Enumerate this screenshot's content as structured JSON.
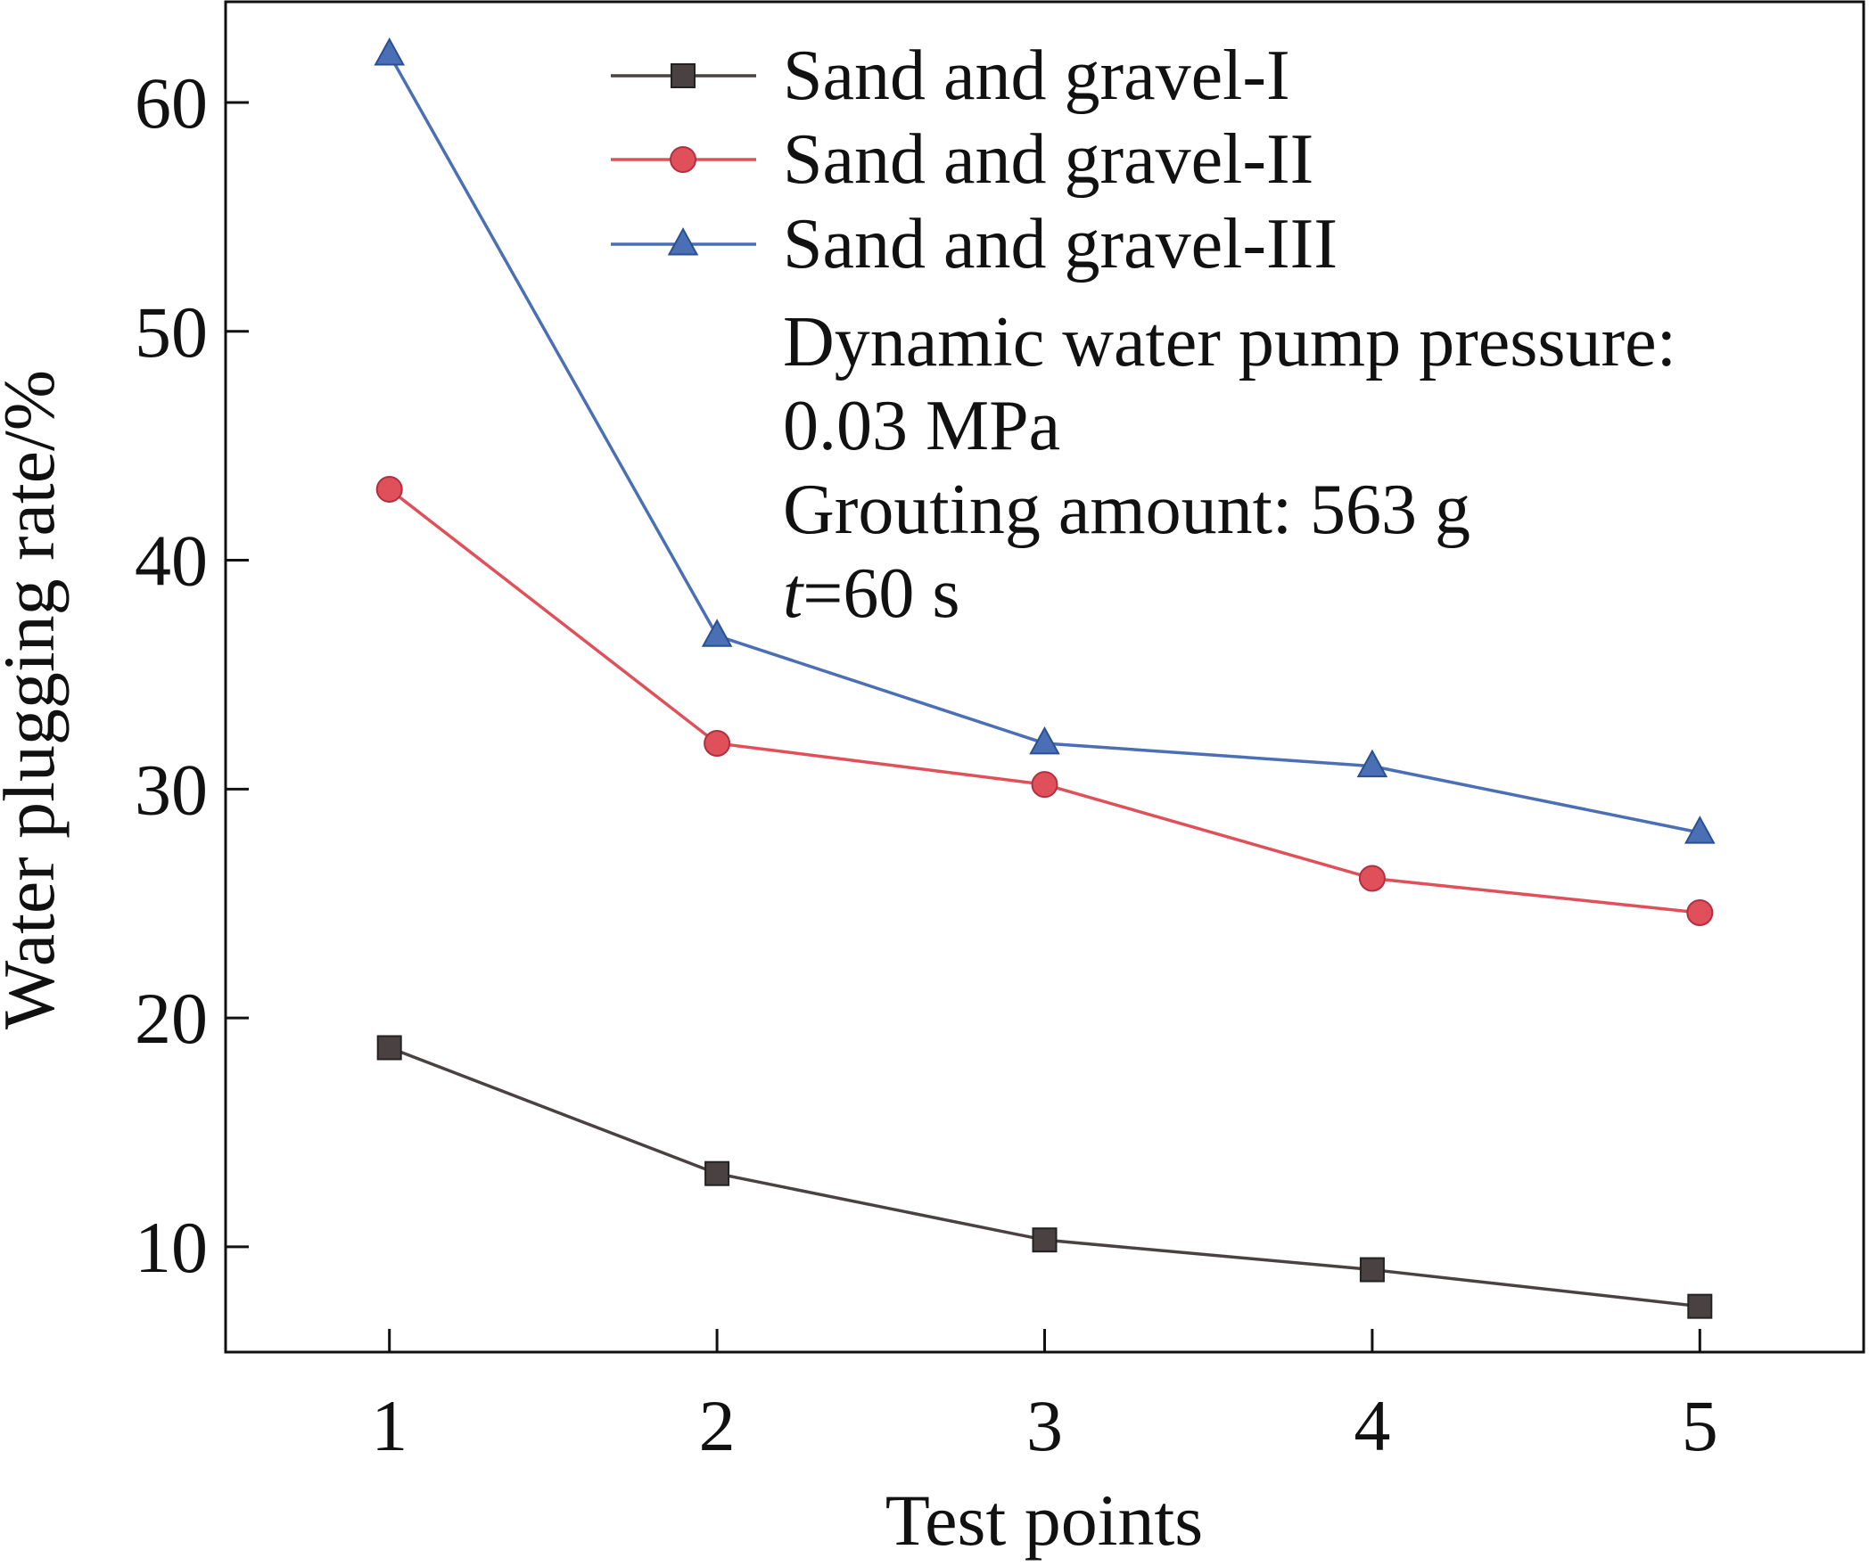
{
  "chart_data": {
    "type": "line",
    "title": "",
    "xlabel": "Test points",
    "ylabel": "Water plugging rate/%",
    "x": [
      1,
      2,
      3,
      4,
      5
    ],
    "x_ticks": [
      "1",
      "2",
      "3",
      "4",
      "5"
    ],
    "y_ticks": [
      "10",
      "20",
      "30",
      "40",
      "50",
      "60"
    ],
    "xlim": [
      0.5,
      5.5
    ],
    "ylim": [
      5.4,
      64.4
    ],
    "grid": false,
    "legend_position": "top-right",
    "series": [
      {
        "name": "Sand and gravel-I",
        "values": [
          18.7,
          13.2,
          10.3,
          9.0,
          7.4
        ],
        "color": "#4a4242",
        "marker": "square"
      },
      {
        "name": "Sand and gravel-II",
        "values": [
          43.1,
          32.0,
          30.2,
          26.1,
          24.6
        ],
        "color": "#e0505a",
        "marker": "circle"
      },
      {
        "name": "Sand and gravel-III",
        "values": [
          62.1,
          36.7,
          32.0,
          31.0,
          28.1
        ],
        "color": "#4a6fb5",
        "marker": "triangle"
      }
    ],
    "annotations": {
      "line1": "Dynamic water pump pressure:",
      "line2": "0.03 MPa",
      "line3": "Grouting amount: 563 g",
      "line4_var": "t",
      "line4_rest": "=60 s"
    }
  }
}
